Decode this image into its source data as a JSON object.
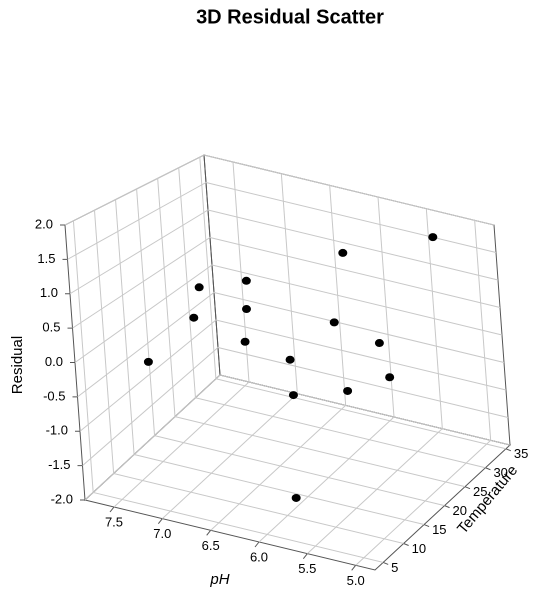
{
  "chart_data": {
    "type": "scatter3d",
    "title": "3D Residual Scatter",
    "x_label": "pH",
    "y_label": "Temperature",
    "z_label": "Residual",
    "x": [
      7.33,
      6.89,
      6.97,
      6.77,
      6.79,
      6.83,
      6.14,
      5.98,
      6.11,
      5.95,
      5.71,
      5.72,
      5.56,
      5.38,
      6.03
    ],
    "y": [
      9.6,
      12.9,
      12.9,
      21.2,
      21.2,
      21.2,
      16.2,
      12.9,
      29.4,
      22.8,
      19.5,
      27.8,
      26.1,
      34.4,
      12.9
    ],
    "z": [
      -0.12,
      1.04,
      0.54,
      0.85,
      0.38,
      -0.17,
      0.04,
      -0.3,
      1.23,
      0.41,
      -0.46,
      -0.09,
      -0.52,
      1.6,
      -1.91
    ],
    "color": "#000000",
    "xlim": [
      7.8,
      4.8
    ],
    "xticks": [
      {
        "value": 5,
        "label": "5.0"
      },
      5.5,
      {
        "value": 6,
        "label": "6.0"
      },
      6.5,
      {
        "value": 7,
        "label": "7.0"
      },
      7.5
    ],
    "ylim": [
      3,
      36
    ],
    "yticks": [
      5,
      10,
      15,
      20,
      25,
      30,
      35
    ],
    "zlim": [
      -2,
      2
    ],
    "zticks": [
      {
        "value": -2,
        "label": "-2.0"
      },
      -1.5,
      {
        "value": -1,
        "label": "-1.0"
      },
      -0.5,
      {
        "value": 0,
        "label": "0.0"
      },
      0.5,
      {
        "value": 1,
        "label": "1.0"
      },
      1.5,
      {
        "value": 2,
        "label": "2.0"
      }
    ],
    "grid": true
  }
}
